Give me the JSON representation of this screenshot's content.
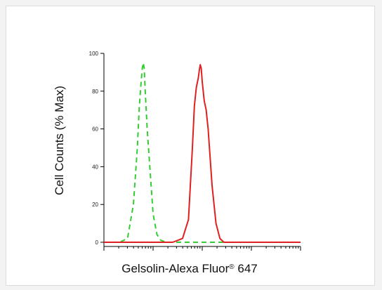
{
  "chart_data": {
    "type": "line",
    "ylabel": "Cell Counts (% Max)",
    "xlabel": {
      "text": "Gelsolin-Alexa Fluor",
      "superscript": "®",
      "suffix": " 647"
    },
    "ylim": [
      0,
      100
    ],
    "y_ticks": [
      0,
      20,
      40,
      60,
      80,
      100
    ],
    "x_scale": "log",
    "x_decades": 4,
    "grid": false,
    "legend": "none",
    "series": [
      {
        "style": "dashed",
        "color": "#33cc33",
        "x": [
          0.0,
          0.08,
          0.12,
          0.15,
          0.17,
          0.18,
          0.19,
          0.195,
          0.2,
          0.205,
          0.21,
          0.22,
          0.23,
          0.24,
          0.25,
          0.27,
          0.29,
          0.32,
          1.0
        ],
        "y": [
          0,
          0,
          2,
          20,
          50,
          72,
          86,
          92,
          95,
          92,
          80,
          60,
          45,
          30,
          15,
          4,
          1,
          0,
          0
        ]
      },
      {
        "style": "solid",
        "color": "#e02020",
        "x": [
          0.0,
          0.28,
          0.35,
          0.4,
          0.43,
          0.45,
          0.46,
          0.47,
          0.48,
          0.485,
          0.49,
          0.495,
          0.5,
          0.51,
          0.52,
          0.53,
          0.54,
          0.55,
          0.57,
          0.59,
          0.61,
          1.0
        ],
        "y": [
          0,
          0,
          0,
          2,
          12,
          50,
          72,
          82,
          87,
          91,
          94,
          92,
          85,
          75,
          70,
          60,
          45,
          30,
          10,
          2,
          0,
          0
        ]
      }
    ]
  }
}
